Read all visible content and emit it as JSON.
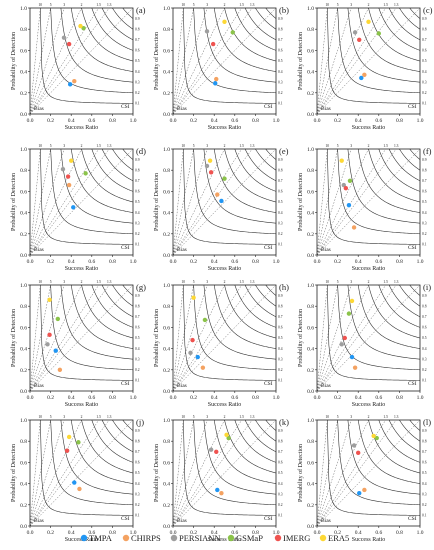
{
  "figure": {
    "xlabel": "Success Ratio",
    "ylabel": "Probability of Detection",
    "bias_label": "Bias",
    "csi_label": "CSI",
    "axis_ticks": [
      "0.0",
      "0.2",
      "0.4",
      "0.6",
      "0.8",
      "1.0"
    ],
    "bias_ticks": [
      "10",
      "5",
      "3",
      "2",
      "1.5",
      "1.3"
    ],
    "csi_ticks": [
      "0.9",
      "0.8",
      "0.7",
      "0.6",
      "0.5",
      "0.4",
      "0.3",
      "0.2",
      "0.1"
    ]
  },
  "legend": [
    {
      "name": "TMPA",
      "color": "#2196f3"
    },
    {
      "name": "CHIRPS",
      "color": "#f4a261"
    },
    {
      "name": "PERSIANN",
      "color": "#9e9e9e"
    },
    {
      "name": "GSMaP",
      "color": "#8bc34a"
    },
    {
      "name": "IMERG",
      "color": "#ef5350"
    },
    {
      "name": "ERA5",
      "color": "#fdd835"
    }
  ],
  "chart_data": [
    {
      "type": "scatter",
      "panel": "(a)",
      "points": [
        {
          "series": "TMPA",
          "x": 0.39,
          "y": 0.28
        },
        {
          "series": "CHIRPS",
          "x": 0.43,
          "y": 0.31
        },
        {
          "series": "PERSIANN",
          "x": 0.33,
          "y": 0.72
        },
        {
          "series": "GSMaP",
          "x": 0.52,
          "y": 0.81
        },
        {
          "series": "IMERG",
          "x": 0.38,
          "y": 0.66
        },
        {
          "series": "ERA5",
          "x": 0.49,
          "y": 0.83
        }
      ]
    },
    {
      "type": "scatter",
      "panel": "(b)",
      "points": [
        {
          "series": "TMPA",
          "x": 0.41,
          "y": 0.29
        },
        {
          "series": "CHIRPS",
          "x": 0.42,
          "y": 0.33
        },
        {
          "series": "PERSIANN",
          "x": 0.33,
          "y": 0.78
        },
        {
          "series": "GSMaP",
          "x": 0.58,
          "y": 0.77
        },
        {
          "series": "IMERG",
          "x": 0.39,
          "y": 0.66
        },
        {
          "series": "ERA5",
          "x": 0.5,
          "y": 0.87
        }
      ]
    },
    {
      "type": "scatter",
      "panel": "(c)",
      "points": [
        {
          "series": "TMPA",
          "x": 0.43,
          "y": 0.34
        },
        {
          "series": "CHIRPS",
          "x": 0.46,
          "y": 0.37
        },
        {
          "series": "PERSIANN",
          "x": 0.37,
          "y": 0.77
        },
        {
          "series": "GSMaP",
          "x": 0.6,
          "y": 0.76
        },
        {
          "series": "IMERG",
          "x": 0.41,
          "y": 0.7
        },
        {
          "series": "ERA5",
          "x": 0.5,
          "y": 0.87
        }
      ]
    },
    {
      "type": "scatter",
      "panel": "(d)",
      "points": [
        {
          "series": "TMPA",
          "x": 0.42,
          "y": 0.45
        },
        {
          "series": "CHIRPS",
          "x": 0.38,
          "y": 0.66
        },
        {
          "series": "PERSIANN",
          "x": 0.32,
          "y": 0.81
        },
        {
          "series": "GSMaP",
          "x": 0.54,
          "y": 0.77
        },
        {
          "series": "IMERG",
          "x": 0.37,
          "y": 0.74
        },
        {
          "series": "ERA5",
          "x": 0.4,
          "y": 0.89
        }
      ]
    },
    {
      "type": "scatter",
      "panel": "(e)",
      "points": [
        {
          "series": "TMPA",
          "x": 0.47,
          "y": 0.51
        },
        {
          "series": "CHIRPS",
          "x": 0.43,
          "y": 0.57
        },
        {
          "series": "PERSIANN",
          "x": 0.33,
          "y": 0.84
        },
        {
          "series": "GSMaP",
          "x": 0.5,
          "y": 0.72
        },
        {
          "series": "IMERG",
          "x": 0.37,
          "y": 0.78
        },
        {
          "series": "ERA5",
          "x": 0.36,
          "y": 0.89
        }
      ]
    },
    {
      "type": "scatter",
      "panel": "(f)",
      "points": [
        {
          "series": "TMPA",
          "x": 0.31,
          "y": 0.47
        },
        {
          "series": "CHIRPS",
          "x": 0.36,
          "y": 0.26
        },
        {
          "series": "PERSIANN",
          "x": 0.26,
          "y": 0.66
        },
        {
          "series": "GSMaP",
          "x": 0.32,
          "y": 0.7
        },
        {
          "series": "IMERG",
          "x": 0.28,
          "y": 0.63
        },
        {
          "series": "ERA5",
          "x": 0.24,
          "y": 0.89
        }
      ]
    },
    {
      "type": "scatter",
      "panel": "(g)",
      "points": [
        {
          "series": "TMPA",
          "x": 0.25,
          "y": 0.38
        },
        {
          "series": "CHIRPS",
          "x": 0.29,
          "y": 0.2
        },
        {
          "series": "PERSIANN",
          "x": 0.17,
          "y": 0.44
        },
        {
          "series": "GSMaP",
          "x": 0.27,
          "y": 0.68
        },
        {
          "series": "IMERG",
          "x": 0.19,
          "y": 0.53
        },
        {
          "series": "ERA5",
          "x": 0.19,
          "y": 0.86
        }
      ]
    },
    {
      "type": "scatter",
      "panel": "(h)",
      "points": [
        {
          "series": "TMPA",
          "x": 0.24,
          "y": 0.32
        },
        {
          "series": "CHIRPS",
          "x": 0.29,
          "y": 0.22
        },
        {
          "series": "PERSIANN",
          "x": 0.17,
          "y": 0.36
        },
        {
          "series": "GSMaP",
          "x": 0.31,
          "y": 0.67
        },
        {
          "series": "IMERG",
          "x": 0.19,
          "y": 0.48
        },
        {
          "series": "ERA5",
          "x": 0.2,
          "y": 0.88
        }
      ]
    },
    {
      "type": "scatter",
      "panel": "(i)",
      "points": [
        {
          "series": "TMPA",
          "x": 0.34,
          "y": 0.32
        },
        {
          "series": "CHIRPS",
          "x": 0.37,
          "y": 0.22
        },
        {
          "series": "PERSIANN",
          "x": 0.24,
          "y": 0.44
        },
        {
          "series": "GSMaP",
          "x": 0.31,
          "y": 0.73
        },
        {
          "series": "IMERG",
          "x": 0.27,
          "y": 0.5
        },
        {
          "series": "ERA5",
          "x": 0.34,
          "y": 0.85
        }
      ]
    },
    {
      "type": "scatter",
      "panel": "(j)",
      "points": [
        {
          "series": "TMPA",
          "x": 0.43,
          "y": 0.41
        },
        {
          "series": "CHIRPS",
          "x": 0.48,
          "y": 0.35
        },
        {
          "series": "PERSIANN",
          "x": 0.36,
          "y": 0.71
        },
        {
          "series": "GSMaP",
          "x": 0.47,
          "y": 0.79
        },
        {
          "series": "IMERG",
          "x": 0.36,
          "y": 0.71
        },
        {
          "series": "ERA5",
          "x": 0.38,
          "y": 0.84
        }
      ]
    },
    {
      "type": "scatter",
      "panel": "(k)",
      "points": [
        {
          "series": "TMPA",
          "x": 0.43,
          "y": 0.34
        },
        {
          "series": "CHIRPS",
          "x": 0.47,
          "y": 0.31
        },
        {
          "series": "PERSIANN",
          "x": 0.37,
          "y": 0.72
        },
        {
          "series": "GSMaP",
          "x": 0.54,
          "y": 0.83
        },
        {
          "series": "IMERG",
          "x": 0.42,
          "y": 0.7
        },
        {
          "series": "ERA5",
          "x": 0.52,
          "y": 0.86
        }
      ]
    },
    {
      "type": "scatter",
      "panel": "(l)",
      "points": [
        {
          "series": "TMPA",
          "x": 0.41,
          "y": 0.31
        },
        {
          "series": "CHIRPS",
          "x": 0.46,
          "y": 0.34
        },
        {
          "series": "PERSIANN",
          "x": 0.36,
          "y": 0.76
        },
        {
          "series": "GSMaP",
          "x": 0.58,
          "y": 0.83
        },
        {
          "series": "IMERG",
          "x": 0.4,
          "y": 0.69
        },
        {
          "series": "ERA5",
          "x": 0.55,
          "y": 0.85
        }
      ]
    }
  ]
}
